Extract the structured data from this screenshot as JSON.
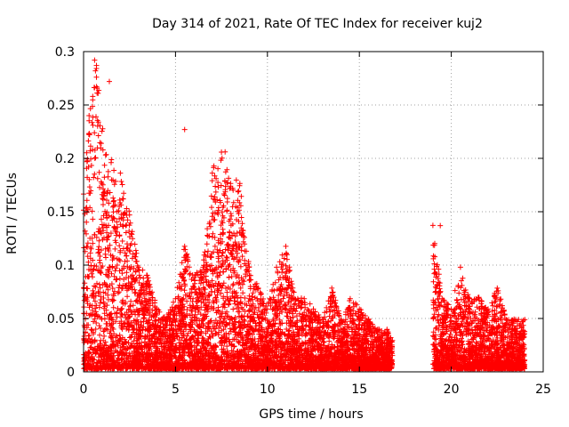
{
  "chart_data": {
    "type": "scatter",
    "title": "Day 314 of 2021, Rate Of TEC Index for receiver kuj2",
    "xlabel": "GPS time / hours",
    "ylabel": "ROTI / TECUs",
    "xlim": [
      0,
      25
    ],
    "ylim": [
      0,
      0.3
    ],
    "grid": true,
    "marker": "+",
    "color": "#ff0000",
    "x_ticks": [
      {
        "value": 0,
        "label": "0"
      },
      {
        "value": 5,
        "label": "5"
      },
      {
        "value": 10,
        "label": "10"
      },
      {
        "value": 15,
        "label": "15"
      },
      {
        "value": 20,
        "label": "20"
      },
      {
        "value": 25,
        "label": "25"
      }
    ],
    "y_ticks": [
      {
        "value": 0,
        "label": "0"
      },
      {
        "value": 0.05,
        "label": "0.05"
      },
      {
        "value": 0.1,
        "label": "0.1"
      },
      {
        "value": 0.15,
        "label": "0.15"
      },
      {
        "value": 0.2,
        "label": "0.2"
      },
      {
        "value": 0.25,
        "label": "0.25"
      },
      {
        "value": 0.3,
        "label": "0.3"
      }
    ],
    "series": [
      {
        "name": "ROTI",
        "coverage": [
          [
            0,
            16.8
          ],
          [
            19,
            24
          ]
        ],
        "envelope_x": [
          0,
          0.3,
          0.5,
          0.7,
          1.0,
          1.5,
          2.0,
          2.5,
          3.0,
          3.5,
          4.0,
          4.5,
          5.0,
          5.5,
          6.0,
          6.5,
          7.0,
          7.5,
          8.0,
          8.5,
          9.0,
          9.5,
          10.0,
          10.5,
          11.0,
          11.5,
          12.0,
          12.5,
          13.0,
          13.5,
          14.0,
          14.5,
          15.0,
          15.5,
          16.0,
          16.5,
          16.8,
          19.0,
          19.5,
          20.0,
          20.5,
          21.0,
          21.5,
          22.0,
          22.5,
          23.0,
          23.5,
          24.0
        ],
        "envelope_max": [
          0.17,
          0.24,
          0.26,
          0.29,
          0.23,
          0.2,
          0.19,
          0.15,
          0.1,
          0.09,
          0.06,
          0.05,
          0.07,
          0.12,
          0.09,
          0.1,
          0.19,
          0.21,
          0.18,
          0.18,
          0.1,
          0.08,
          0.06,
          0.1,
          0.12,
          0.07,
          0.07,
          0.06,
          0.05,
          0.08,
          0.05,
          0.07,
          0.06,
          0.05,
          0.04,
          0.04,
          0.03,
          0.14,
          0.07,
          0.06,
          0.1,
          0.07,
          0.07,
          0.06,
          0.08,
          0.05,
          0.05,
          0.05
        ],
        "outliers": [
          {
            "x": 0.6,
            "y": 0.292
          },
          {
            "x": 0.7,
            "y": 0.287
          },
          {
            "x": 0.65,
            "y": 0.282
          },
          {
            "x": 0.7,
            "y": 0.276
          },
          {
            "x": 1.4,
            "y": 0.272
          },
          {
            "x": 0.5,
            "y": 0.258
          },
          {
            "x": 0.3,
            "y": 0.24
          },
          {
            "x": 5.5,
            "y": 0.227
          },
          {
            "x": 7.7,
            "y": 0.206
          },
          {
            "x": 19.4,
            "y": 0.137
          }
        ]
      }
    ]
  }
}
